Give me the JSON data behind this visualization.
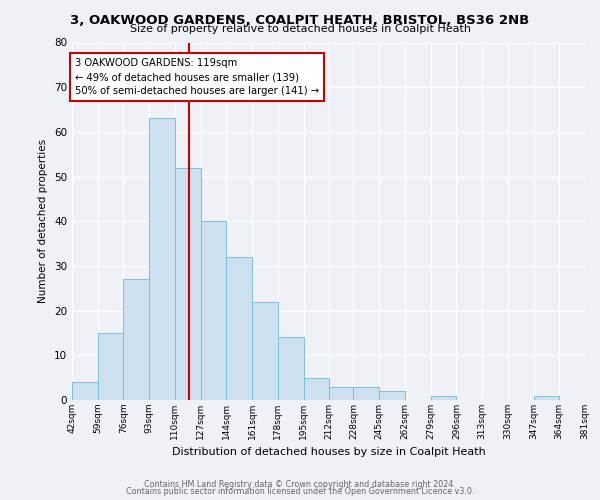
{
  "title_line1": "3, OAKWOOD GARDENS, COALPIT HEATH, BRISTOL, BS36 2NB",
  "title_line2": "Size of property relative to detached houses in Coalpit Heath",
  "xlabel": "Distribution of detached houses by size in Coalpit Heath",
  "ylabel": "Number of detached properties",
  "bin_edges": [
    42,
    59,
    76,
    93,
    110,
    127,
    144,
    161,
    178,
    195,
    212,
    228,
    245,
    262,
    279,
    296,
    313,
    330,
    347,
    364,
    381
  ],
  "bin_counts": [
    4,
    15,
    27,
    63,
    52,
    40,
    32,
    22,
    14,
    5,
    3,
    3,
    2,
    0,
    1,
    0,
    0,
    0,
    1,
    0
  ],
  "bar_facecolor": "#cce0f0",
  "bar_edgecolor": "#7bbfde",
  "property_line_x": 119,
  "annotation_title": "3 OAKWOOD GARDENS: 119sqm",
  "annotation_line1": "← 49% of detached houses are smaller (139)",
  "annotation_line2": "50% of semi-detached houses are larger (141) →",
  "annotation_box_color": "#cc0000",
  "ylim": [
    0,
    80
  ],
  "yticks": [
    0,
    10,
    20,
    30,
    40,
    50,
    60,
    70,
    80
  ],
  "tick_labels": [
    "42sqm",
    "59sqm",
    "76sqm",
    "93sqm",
    "110sqm",
    "127sqm",
    "144sqm",
    "161sqm",
    "178sqm",
    "195sqm",
    "212sqm",
    "228sqm",
    "245sqm",
    "262sqm",
    "279sqm",
    "296sqm",
    "313sqm",
    "330sqm",
    "347sqm",
    "364sqm",
    "381sqm"
  ],
  "footer_line1": "Contains HM Land Registry data © Crown copyright and database right 2024.",
  "footer_line2": "Contains public sector information licensed under the Open Government Licence v3.0.",
  "bg_color": "#eef2f7"
}
